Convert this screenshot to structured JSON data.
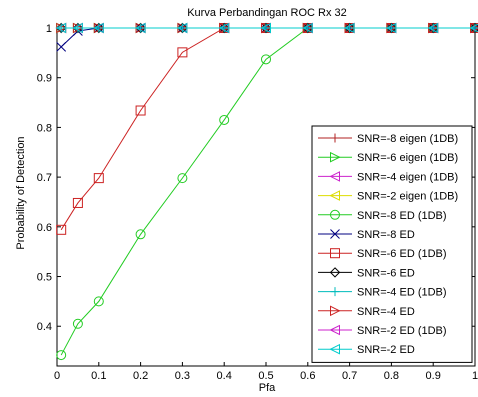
{
  "chart_data": {
    "type": "line",
    "title": "Kurva Perbandingan ROC Rx 32",
    "xlabel": "Pfa",
    "ylabel": "Probability of Detection",
    "xlim": [
      0,
      1
    ],
    "ylim": [
      0.32,
      1.0
    ],
    "xticks": [
      0,
      0.1,
      0.2,
      0.3,
      0.4,
      0.5,
      0.6,
      0.7,
      0.8,
      0.9,
      1
    ],
    "xtick_labels": [
      "0",
      "0.1",
      "0.2",
      "0.3",
      "0.4",
      "0.5",
      "0.6",
      "0.7",
      "0.8",
      "0.9",
      "1"
    ],
    "yticks": [
      0.4,
      0.5,
      0.6,
      0.7,
      0.8,
      0.9,
      1
    ],
    "ytick_labels": [
      "0.4",
      "0.5",
      "0.6",
      "0.7",
      "0.8",
      "0.9",
      "1"
    ],
    "grid": false,
    "legend_position": "bottom-right",
    "series": [
      {
        "name": "SNR=-8 eigen (1DB)",
        "color": "#b22222",
        "marker": "plus",
        "x": [
          0.01,
          0.05,
          0.1,
          0.2,
          0.3,
          0.4,
          0.5,
          0.6,
          0.7,
          0.8,
          0.9,
          1
        ],
        "y": [
          1,
          1,
          1,
          1,
          1,
          1,
          1,
          1,
          1,
          1,
          1,
          1
        ]
      },
      {
        "name": "SNR=-6 eigen (1DB)",
        "color": "#22cc22",
        "marker": "triangle-right",
        "x": [
          0.01,
          0.05,
          0.1,
          0.2,
          0.3,
          0.4,
          0.5,
          0.6,
          0.7,
          0.8,
          0.9,
          1
        ],
        "y": [
          1,
          1,
          1,
          1,
          1,
          1,
          1,
          1,
          1,
          1,
          1,
          1
        ]
      },
      {
        "name": "SNR=-4 eigen (1DB)",
        "color": "#cc22cc",
        "marker": "triangle-left",
        "x": [
          0.01,
          0.05,
          0.1,
          0.2,
          0.3,
          0.4,
          0.5,
          0.6,
          0.7,
          0.8,
          0.9,
          1
        ],
        "y": [
          1,
          1,
          1,
          1,
          1,
          1,
          1,
          1,
          1,
          1,
          1,
          1
        ]
      },
      {
        "name": "SNR=-2 eigen (1DB)",
        "color": "#dddd00",
        "marker": "triangle-left",
        "x": [
          0.01,
          0.05,
          0.1,
          0.2,
          0.3,
          0.4,
          0.5,
          0.6,
          0.7,
          0.8,
          0.9,
          1
        ],
        "y": [
          1,
          1,
          1,
          1,
          1,
          1,
          1,
          1,
          1,
          1,
          1,
          1
        ]
      },
      {
        "name": "SNR=-8 ED (1DB)",
        "color": "#22cc22",
        "marker": "circle",
        "x": [
          0.01,
          0.05,
          0.1,
          0.2,
          0.3,
          0.4,
          0.5,
          0.6,
          0.7,
          0.8,
          0.9,
          1
        ],
        "y": [
          0.342,
          0.405,
          0.45,
          0.585,
          0.698,
          0.815,
          0.937,
          1,
          1,
          1,
          1,
          1
        ]
      },
      {
        "name": "SNR=-8 ED",
        "color": "#000080",
        "marker": "x",
        "x": [
          0.01,
          0.05,
          0.1,
          0.2,
          0.3,
          0.4,
          0.5,
          0.6,
          0.7,
          0.8,
          0.9,
          1
        ],
        "y": [
          0.962,
          0.994,
          1,
          1,
          1,
          1,
          1,
          1,
          1,
          1,
          1,
          1
        ]
      },
      {
        "name": "SNR=-6 ED (1DB)",
        "color": "#cc2222",
        "marker": "square",
        "x": [
          0.01,
          0.05,
          0.1,
          0.2,
          0.3,
          0.4,
          0.5,
          0.6,
          0.7,
          0.8,
          0.9,
          1
        ],
        "y": [
          0.594,
          0.648,
          0.698,
          0.834,
          0.951,
          1,
          1,
          1,
          1,
          1,
          1,
          1
        ]
      },
      {
        "name": "SNR=-6 ED",
        "color": "#000000",
        "marker": "diamond",
        "x": [
          0.01,
          0.05,
          0.1,
          0.2,
          0.3,
          0.4,
          0.5,
          0.6,
          0.7,
          0.8,
          0.9,
          1
        ],
        "y": [
          1,
          1,
          1,
          1,
          1,
          1,
          1,
          1,
          1,
          1,
          1,
          1
        ]
      },
      {
        "name": "SNR=-4 ED (1DB)",
        "color": "#00bbbb",
        "marker": "plus",
        "x": [
          0.01,
          0.05,
          0.1,
          0.2,
          0.3,
          0.4,
          0.5,
          0.6,
          0.7,
          0.8,
          0.9,
          1
        ],
        "y": [
          1,
          1,
          1,
          1,
          1,
          1,
          1,
          1,
          1,
          1,
          1,
          1
        ]
      },
      {
        "name": "SNR=-4 ED",
        "color": "#cc2222",
        "marker": "triangle-right",
        "x": [
          0.01,
          0.05,
          0.1,
          0.2,
          0.3,
          0.4,
          0.5,
          0.6,
          0.7,
          0.8,
          0.9,
          1
        ],
        "y": [
          1,
          1,
          1,
          1,
          1,
          1,
          1,
          1,
          1,
          1,
          1,
          1
        ]
      },
      {
        "name": "SNR=-2 ED (1DB)",
        "color": "#cc22cc",
        "marker": "triangle-left",
        "x": [
          0.01,
          0.05,
          0.1,
          0.2,
          0.3,
          0.4,
          0.5,
          0.6,
          0.7,
          0.8,
          0.9,
          1
        ],
        "y": [
          1,
          1,
          1,
          1,
          1,
          1,
          1,
          1,
          1,
          1,
          1,
          1
        ]
      },
      {
        "name": "SNR=-2 ED",
        "color": "#00cccc",
        "marker": "triangle-left",
        "x": [
          0.01,
          0.05,
          0.1,
          0.2,
          0.3,
          0.4,
          0.5,
          0.6,
          0.7,
          0.8,
          0.9,
          1
        ],
        "y": [
          1,
          1,
          1,
          1,
          1,
          1,
          1,
          1,
          1,
          1,
          1,
          1
        ]
      }
    ]
  }
}
